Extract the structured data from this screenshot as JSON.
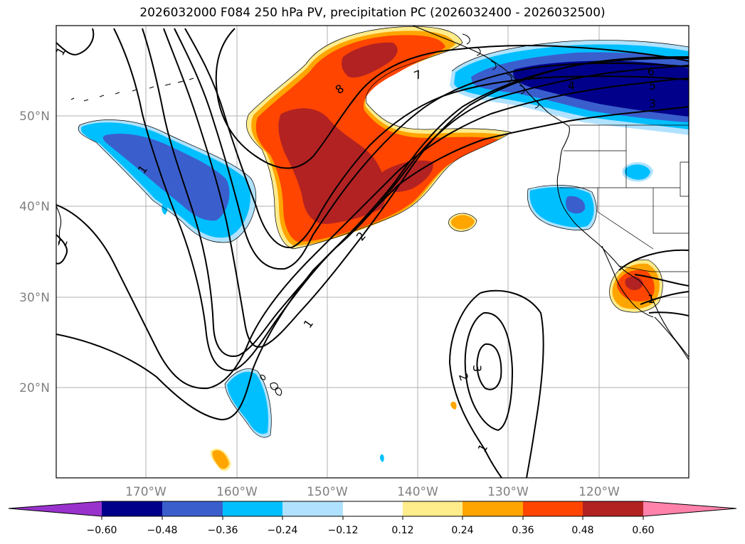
{
  "title": "2026032000 F084 250 hPa PV, precipitation PC (2026032400 - 2026032500)",
  "lon_labels": [
    "170°W",
    "160°W",
    "150°W",
    "140°W",
    "130°W",
    "120°W"
  ],
  "lat_labels": [
    "50°N",
    "40°N",
    "30°N",
    "20°N"
  ],
  "pv_labels": [
    "8",
    "7",
    "6",
    "5",
    "4",
    "3",
    "2",
    "1",
    "1",
    "1",
    "2",
    "3",
    "1",
    "1",
    "2"
  ],
  "colorbar": {
    "tick_labels": [
      "−0.60",
      "−0.48",
      "−0.36",
      "−0.24",
      "−0.12",
      "0.12",
      "0.24",
      "0.36",
      "0.48",
      "0.60"
    ],
    "colors": [
      "#9932cc",
      "#00008b",
      "#3a5fcd",
      "#00bfff",
      "#b0e2ff",
      "#ffffff",
      "#ffec8b",
      "#ffa500",
      "#ff4500",
      "#b22222",
      "#ff82ab"
    ]
  }
}
